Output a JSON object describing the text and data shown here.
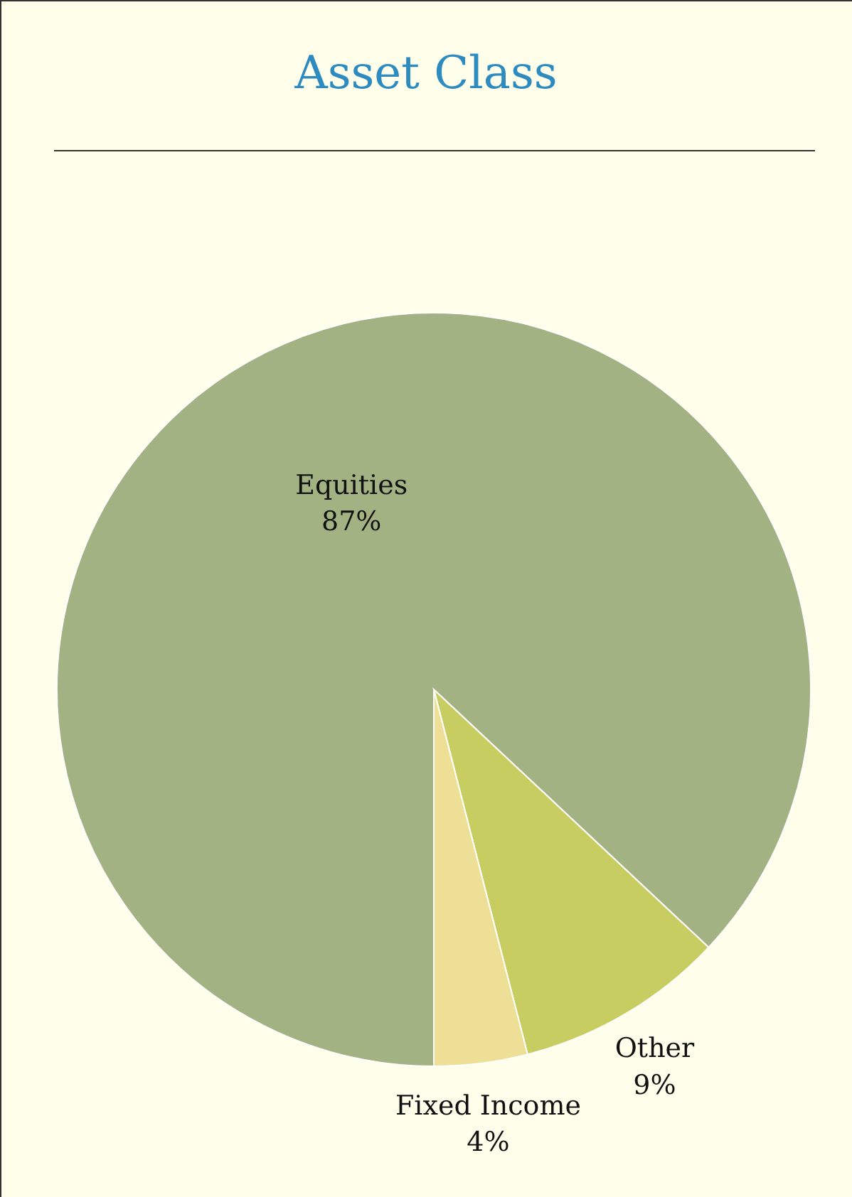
{
  "chart_data": {
    "type": "pie",
    "title": "Asset Class",
    "categories": [
      "Equities",
      "Other",
      "Fixed Income"
    ],
    "values": [
      87,
      9,
      4
    ],
    "colors": [
      "#a3b283",
      "#c8cd62",
      "#ede096"
    ],
    "value_labels": [
      "87%",
      "9%",
      "4%"
    ]
  }
}
